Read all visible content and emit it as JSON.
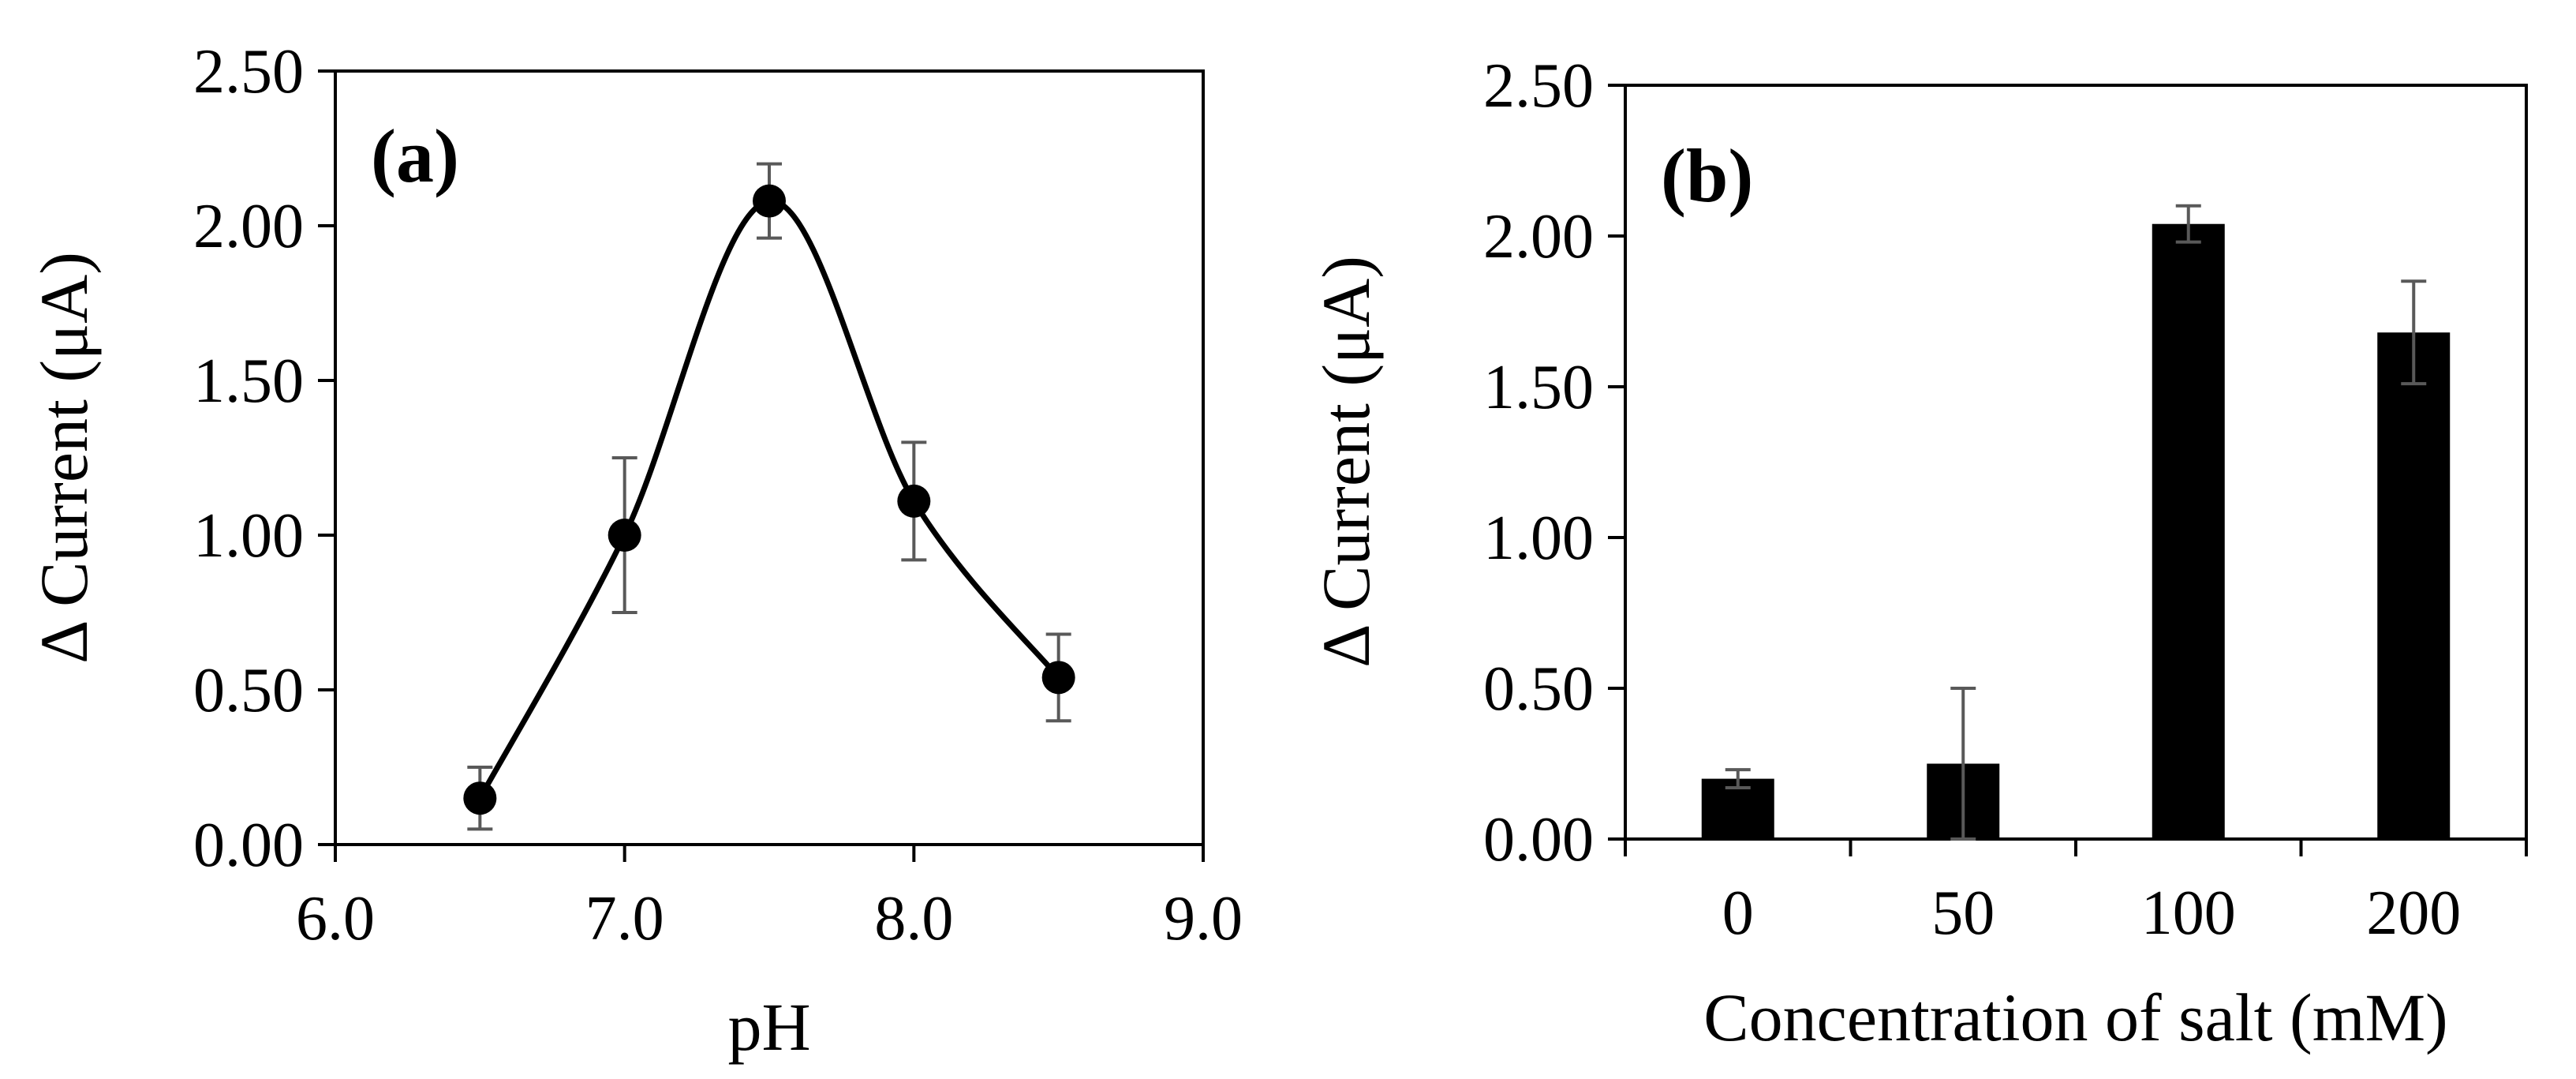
{
  "colors": {
    "ink": "#000000",
    "errorbar": "#595959",
    "background": "#ffffff"
  },
  "chart_data": [
    {
      "type": "line",
      "panel_label": "(a)",
      "title": "",
      "xlabel": "pH",
      "ylabel": "Δ Current (μA)",
      "xlim": [
        6.0,
        9.0
      ],
      "ylim": [
        0.0,
        2.5
      ],
      "xticks": [
        "6.0",
        "7.0",
        "8.0",
        "9.0"
      ],
      "yticks": [
        "0.00",
        "0.50",
        "1.00",
        "1.50",
        "2.00",
        "2.50"
      ],
      "smooth": true,
      "series": [
        {
          "name": "Δ Current",
          "x": [
            6.5,
            7.0,
            7.5,
            8.0,
            8.5
          ],
          "y": [
            0.15,
            1.0,
            2.08,
            1.11,
            0.54
          ],
          "error": [
            0.1,
            0.25,
            0.12,
            0.19,
            0.14
          ]
        }
      ]
    },
    {
      "type": "bar",
      "panel_label": "(b)",
      "title": "",
      "xlabel": "Concentration of salt (mM)",
      "ylabel": "Δ Current (μA)",
      "ylim": [
        0.0,
        2.5
      ],
      "yticks": [
        "0.00",
        "0.50",
        "1.00",
        "1.50",
        "2.00",
        "2.50"
      ],
      "categories": [
        "0",
        "50",
        "100",
        "200"
      ],
      "values": [
        0.2,
        0.25,
        2.04,
        1.68
      ],
      "error": [
        0.03,
        0.25,
        0.06,
        0.17
      ]
    }
  ]
}
